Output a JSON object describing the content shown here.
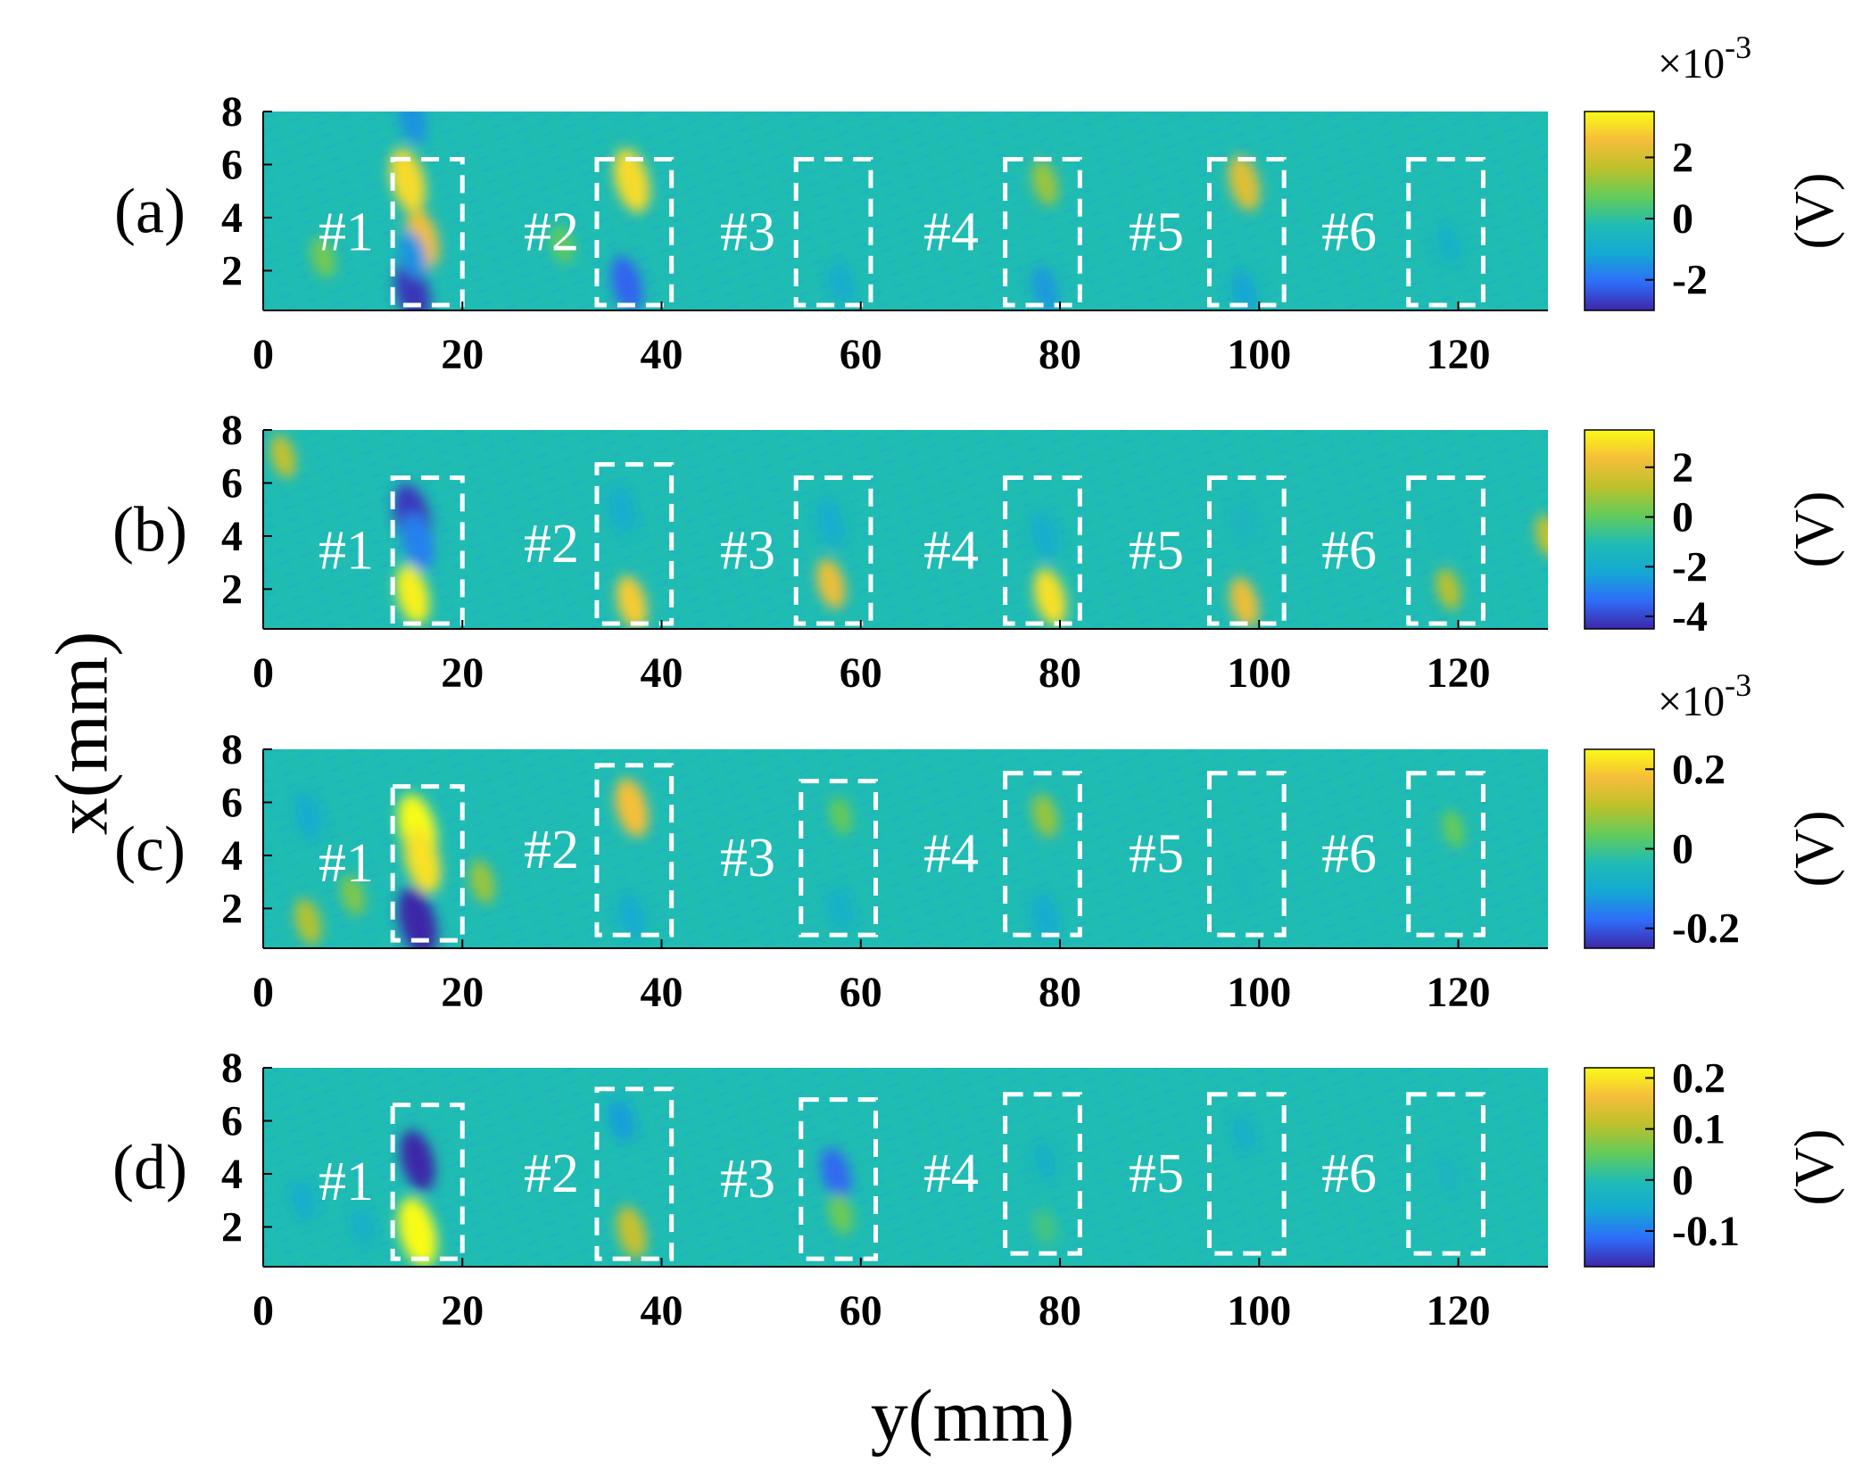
{
  "chart_data": {
    "type": "heatmap",
    "xlabel": "y(mm)",
    "ylabel": "x(mm)",
    "xlim": [
      0,
      129
    ],
    "ylim": [
      0.5,
      8
    ],
    "x_ticks": [
      "0",
      "20",
      "40",
      "60",
      "80",
      "100",
      "120"
    ],
    "y_ticks": [
      "8",
      "6",
      "4",
      "2"
    ],
    "defect_labels": [
      "#1",
      "#2",
      "#3",
      "#4",
      "#5",
      "#6"
    ],
    "colormap": [
      "#3e26a8",
      "#2e6efa",
      "#14a9d2",
      "#1fbcb4",
      "#63cb5a",
      "#bcc12b",
      "#f6be3a",
      "#f9fb15"
    ],
    "background_color": "#1fbcb4",
    "box_color": "#ffffff",
    "panels": [
      {
        "label": "(a)",
        "exponent": "×10",
        "exponent_power": "-3",
        "unit": "(V)",
        "colorbar_range": [
          -3,
          3.5
        ],
        "colorbar_ticks": [
          {
            "value": 2,
            "label": "2"
          },
          {
            "value": 0,
            "label": "0"
          },
          {
            "value": -2,
            "label": "-2"
          }
        ],
        "boxes": [
          {
            "defect": "#1",
            "y_range": [
              13,
              20
            ],
            "x_range": [
              0.7,
              6.2
            ]
          },
          {
            "defect": "#2",
            "y_range": [
              33.5,
              41
            ],
            "x_range": [
              0.7,
              6.2
            ]
          },
          {
            "defect": "#3",
            "y_range": [
              53.5,
              61
            ],
            "x_range": [
              0.7,
              6.2
            ]
          },
          {
            "defect": "#4",
            "y_range": [
              74.5,
              82
            ],
            "x_range": [
              0.7,
              6.2
            ]
          },
          {
            "defect": "#5",
            "y_range": [
              95,
              102.5
            ],
            "x_range": [
              0.7,
              6.2
            ]
          },
          {
            "defect": "#6",
            "y_range": [
              115,
              122.5
            ],
            "x_range": [
              0.7,
              6.2
            ]
          }
        ],
        "blobs": [
          {
            "y": 14.5,
            "x": 5.4,
            "value": 3
          },
          {
            "y": 16,
            "x": 3.2,
            "value": 2.5
          },
          {
            "y": 15,
            "x": 1.2,
            "value": -2.8
          },
          {
            "y": 15,
            "x": 2.6,
            "value": -1.5
          },
          {
            "y": 37,
            "x": 5.4,
            "value": 3
          },
          {
            "y": 36.5,
            "x": 1.5,
            "value": -2.2
          },
          {
            "y": 58,
            "x": 1.5,
            "value": -1
          },
          {
            "y": 78.5,
            "x": 5.3,
            "value": 1.3
          },
          {
            "y": 78.5,
            "x": 1.3,
            "value": -1.4
          },
          {
            "y": 98.5,
            "x": 5.3,
            "value": 2.2
          },
          {
            "y": 98.5,
            "x": 1.2,
            "value": -1.2
          },
          {
            "y": 119,
            "x": 3,
            "value": -0.8
          },
          {
            "y": 30,
            "x": 3,
            "value": 0.7
          },
          {
            "y": 6,
            "x": 2.5,
            "value": 0.9
          },
          {
            "y": 15,
            "x": 7.7,
            "value": -1.5
          }
        ]
      },
      {
        "label": "(b)",
        "exponent": "",
        "exponent_power": "",
        "unit": "(V)",
        "colorbar_range": [
          -4.5,
          3.5
        ],
        "colorbar_ticks": [
          {
            "value": 2,
            "label": "2"
          },
          {
            "value": 0,
            "label": "0"
          },
          {
            "value": -2,
            "label": "-2"
          },
          {
            "value": -4,
            "label": "-4"
          }
        ],
        "boxes": [
          {
            "defect": "#1",
            "y_range": [
              13,
              20
            ],
            "x_range": [
              0.7,
              6.2
            ]
          },
          {
            "defect": "#2",
            "y_range": [
              33.5,
              41
            ],
            "x_range": [
              0.7,
              6.7
            ]
          },
          {
            "defect": "#3",
            "y_range": [
              53.5,
              61
            ],
            "x_range": [
              0.7,
              6.2
            ]
          },
          {
            "defect": "#4",
            "y_range": [
              74.5,
              82
            ],
            "x_range": [
              0.7,
              6.2
            ]
          },
          {
            "defect": "#5",
            "y_range": [
              95,
              102.5
            ],
            "x_range": [
              0.7,
              6.2
            ]
          },
          {
            "defect": "#6",
            "y_range": [
              115,
              122.5
            ],
            "x_range": [
              0.7,
              6.2
            ]
          }
        ],
        "blobs": [
          {
            "y": 15,
            "x": 4.7,
            "value": -4.2
          },
          {
            "y": 15.5,
            "x": 3.8,
            "value": -3
          },
          {
            "y": 15,
            "x": 1.8,
            "value": 3.3
          },
          {
            "y": 36,
            "x": 5,
            "value": -2
          },
          {
            "y": 37,
            "x": 1.5,
            "value": 2.6
          },
          {
            "y": 57,
            "x": 4.5,
            "value": -2
          },
          {
            "y": 57,
            "x": 2.2,
            "value": 2.2
          },
          {
            "y": 78.5,
            "x": 4,
            "value": -2
          },
          {
            "y": 79,
            "x": 1.7,
            "value": 3
          },
          {
            "y": 98.5,
            "x": 4.5,
            "value": -1.5
          },
          {
            "y": 98.5,
            "x": 1.5,
            "value": 2.2
          },
          {
            "y": 119,
            "x": 4,
            "value": -1.2
          },
          {
            "y": 119,
            "x": 2,
            "value": 1.2
          },
          {
            "y": 2,
            "x": 7,
            "value": 1.4
          },
          {
            "y": 129,
            "x": 4,
            "value": 1.4
          }
        ]
      },
      {
        "label": "(c)",
        "exponent": "×10",
        "exponent_power": "-3",
        "unit": "(V)",
        "colorbar_range": [
          -0.25,
          0.25
        ],
        "colorbar_ticks": [
          {
            "value": 0.2,
            "label": "0.2"
          },
          {
            "value": 0,
            "label": "0"
          },
          {
            "value": -0.2,
            "label": "-0.2"
          }
        ],
        "boxes": [
          {
            "defect": "#1",
            "y_range": [
              13,
              20
            ],
            "x_range": [
              0.8,
              6.6
            ]
          },
          {
            "defect": "#2",
            "y_range": [
              33.5,
              41
            ],
            "x_range": [
              1,
              7.4
            ]
          },
          {
            "defect": "#3",
            "y_range": [
              54,
              61.5
            ],
            "x_range": [
              1,
              6.8
            ]
          },
          {
            "defect": "#4",
            "y_range": [
              74.5,
              82
            ],
            "x_range": [
              1,
              7.1
            ]
          },
          {
            "defect": "#5",
            "y_range": [
              95,
              102.5
            ],
            "x_range": [
              1,
              7.1
            ]
          },
          {
            "defect": "#6",
            "y_range": [
              115,
              122.5
            ],
            "x_range": [
              1,
              7.1
            ]
          }
        ],
        "blobs": [
          {
            "y": 15.5,
            "x": 5,
            "value": 0.25
          },
          {
            "y": 16,
            "x": 3.8,
            "value": 0.22
          },
          {
            "y": 15.5,
            "x": 1.5,
            "value": -0.25
          },
          {
            "y": 37,
            "x": 5.8,
            "value": 0.18
          },
          {
            "y": 37,
            "x": 1.7,
            "value": -0.1
          },
          {
            "y": 58,
            "x": 2,
            "value": -0.08
          },
          {
            "y": 58,
            "x": 5.5,
            "value": 0.04
          },
          {
            "y": 78.5,
            "x": 5.5,
            "value": 0.08
          },
          {
            "y": 78.5,
            "x": 1.7,
            "value": -0.1
          },
          {
            "y": 98.5,
            "x": 3,
            "value": -0.05
          },
          {
            "y": 119.5,
            "x": 5,
            "value": 0.04
          },
          {
            "y": 4.5,
            "x": 5.5,
            "value": -0.1
          },
          {
            "y": 4.5,
            "x": 1.5,
            "value": 0.1
          },
          {
            "y": 9,
            "x": 2.5,
            "value": 0.06
          },
          {
            "y": 22,
            "x": 3,
            "value": 0.08
          }
        ]
      },
      {
        "label": "(d)",
        "exponent": "",
        "exponent_power": "",
        "unit": "(V)",
        "colorbar_range": [
          -0.17,
          0.22
        ],
        "colorbar_ticks": [
          {
            "value": 0.2,
            "label": "0.2"
          },
          {
            "value": 0.1,
            "label": "0.1"
          },
          {
            "value": 0,
            "label": "0"
          },
          {
            "value": -0.1,
            "label": "-0.1"
          }
        ],
        "boxes": [
          {
            "defect": "#1",
            "y_range": [
              13,
              20
            ],
            "x_range": [
              0.8,
              6.6
            ]
          },
          {
            "defect": "#2",
            "y_range": [
              33.5,
              41
            ],
            "x_range": [
              0.8,
              7.2
            ]
          },
          {
            "defect": "#3",
            "y_range": [
              54,
              61.5
            ],
            "x_range": [
              0.8,
              6.8
            ]
          },
          {
            "defect": "#4",
            "y_range": [
              74.5,
              82
            ],
            "x_range": [
              1,
              7
            ]
          },
          {
            "defect": "#5",
            "y_range": [
              95,
              102.5
            ],
            "x_range": [
              1,
              7
            ]
          },
          {
            "defect": "#6",
            "y_range": [
              115,
              122.5
            ],
            "x_range": [
              1,
              7
            ]
          }
        ],
        "blobs": [
          {
            "y": 15.5,
            "x": 4.5,
            "value": -0.17
          },
          {
            "y": 15.5,
            "x": 1.8,
            "value": 0.22
          },
          {
            "y": 36,
            "x": 6,
            "value": -0.07
          },
          {
            "y": 37,
            "x": 1.8,
            "value": 0.12
          },
          {
            "y": 57.5,
            "x": 4,
            "value": -0.12
          },
          {
            "y": 58,
            "x": 2.5,
            "value": 0.06
          },
          {
            "y": 78.5,
            "x": 4.5,
            "value": -0.04
          },
          {
            "y": 78.5,
            "x": 2,
            "value": 0.03
          },
          {
            "y": 98.5,
            "x": 5.5,
            "value": -0.04
          },
          {
            "y": 119,
            "x": 4,
            "value": -0.03
          },
          {
            "y": 4,
            "x": 3,
            "value": -0.05
          },
          {
            "y": 10,
            "x": 2,
            "value": -0.04
          }
        ]
      }
    ]
  }
}
